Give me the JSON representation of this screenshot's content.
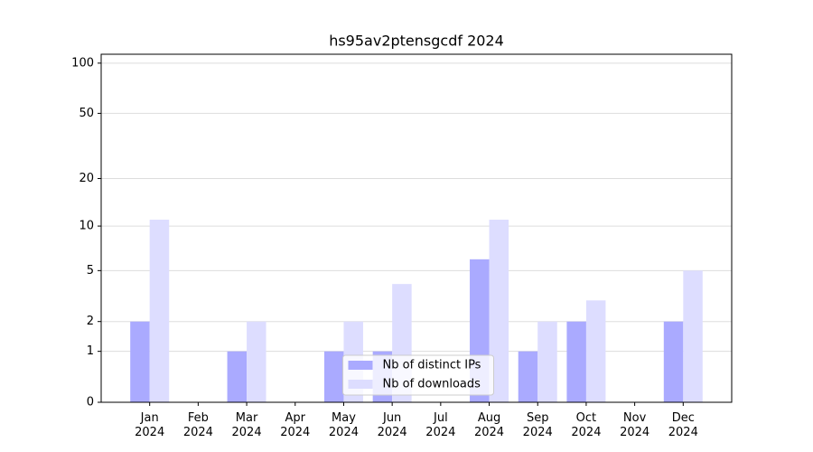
{
  "chart_data": {
    "type": "bar",
    "title": "hs95av2ptensgcdf 2024",
    "categories": [
      "Jan\n2024",
      "Feb\n2024",
      "Mar\n2024",
      "Apr\n2024",
      "May\n2024",
      "Jun\n2024",
      "Jul\n2024",
      "Aug\n2024",
      "Sep\n2024",
      "Oct\n2024",
      "Nov\n2024",
      "Dec\n2024"
    ],
    "series": [
      {
        "name": "Nb of distinct IPs",
        "color": "#aaaaff",
        "values": [
          2,
          0,
          1,
          0,
          1,
          1,
          0,
          6,
          1,
          2,
          0,
          2
        ]
      },
      {
        "name": "Nb of downloads",
        "color": "#ddddff",
        "values": [
          11,
          0,
          2,
          0,
          2,
          4,
          0,
          11,
          2,
          3,
          0,
          5
        ]
      }
    ],
    "yscale": "log1p",
    "ylim": [
      0,
      113
    ],
    "yticks": [
      0,
      1,
      2,
      5,
      10,
      20,
      50,
      100
    ],
    "grid": true,
    "legend": "lower center"
  }
}
